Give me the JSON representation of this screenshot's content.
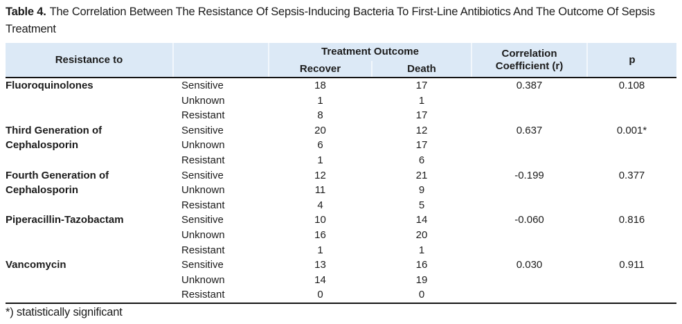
{
  "caption": {
    "label": "Table 4.",
    "text": "The Correlation Between The Resistance Of Sepsis-Inducing Bacteria To First-Line Antibiotics And The Outcome Of Sepsis Treatment"
  },
  "header": {
    "resistance_to": "Resistance to",
    "status_header": "",
    "treatment_outcome": "Treatment Outcome",
    "recover": "Recover",
    "death": "Death",
    "correlation_coefficient": "Correlation Coefficient (r)",
    "p": "p"
  },
  "groups": [
    {
      "antibiotic": "Fluoroquinolones",
      "r": "0.387",
      "p": "0.108",
      "rows": [
        {
          "status": "Sensitive",
          "recover": "18",
          "death": "17"
        },
        {
          "status": "Unknown",
          "recover": "1",
          "death": "1"
        },
        {
          "status": "Resistant",
          "recover": "8",
          "death": "17"
        }
      ]
    },
    {
      "antibiotic": "Third Generation of Cephalosporin",
      "r": "0.637",
      "p": "0.001*",
      "rows": [
        {
          "status": "Sensitive",
          "recover": "20",
          "death": "12"
        },
        {
          "status": "Unknown",
          "recover": "6",
          "death": "17"
        },
        {
          "status": "Resistant",
          "recover": "1",
          "death": "6"
        }
      ]
    },
    {
      "antibiotic": "Fourth Generation of Cephalosporin",
      "r": "-0.199",
      "p": "0.377",
      "rows": [
        {
          "status": "Sensitive",
          "recover": "12",
          "death": "21"
        },
        {
          "status": "Unknown",
          "recover": "11",
          "death": "9"
        },
        {
          "status": "Resistant",
          "recover": "4",
          "death": "5"
        }
      ]
    },
    {
      "antibiotic": "Piperacillin-Tazobactam",
      "r": "-0.060",
      "p": "0.816",
      "rows": [
        {
          "status": "Sensitive",
          "recover": "10",
          "death": "14"
        },
        {
          "status": "Unknown",
          "recover": "16",
          "death": "20"
        },
        {
          "status": "Resistant",
          "recover": "1",
          "death": "1"
        }
      ]
    },
    {
      "antibiotic": "Vancomycin",
      "r": "0.030",
      "p": "0.911",
      "rows": [
        {
          "status": "Sensitive",
          "recover": "13",
          "death": "16"
        },
        {
          "status": "Unknown",
          "recover": "14",
          "death": "19"
        },
        {
          "status": "Resistant",
          "recover": "0",
          "death": "0"
        }
      ]
    }
  ],
  "footnote": "*) statistically significant",
  "colors": {
    "header_bg": "#dce9f6",
    "text": "#1b1b1b",
    "rule": "#141414"
  }
}
